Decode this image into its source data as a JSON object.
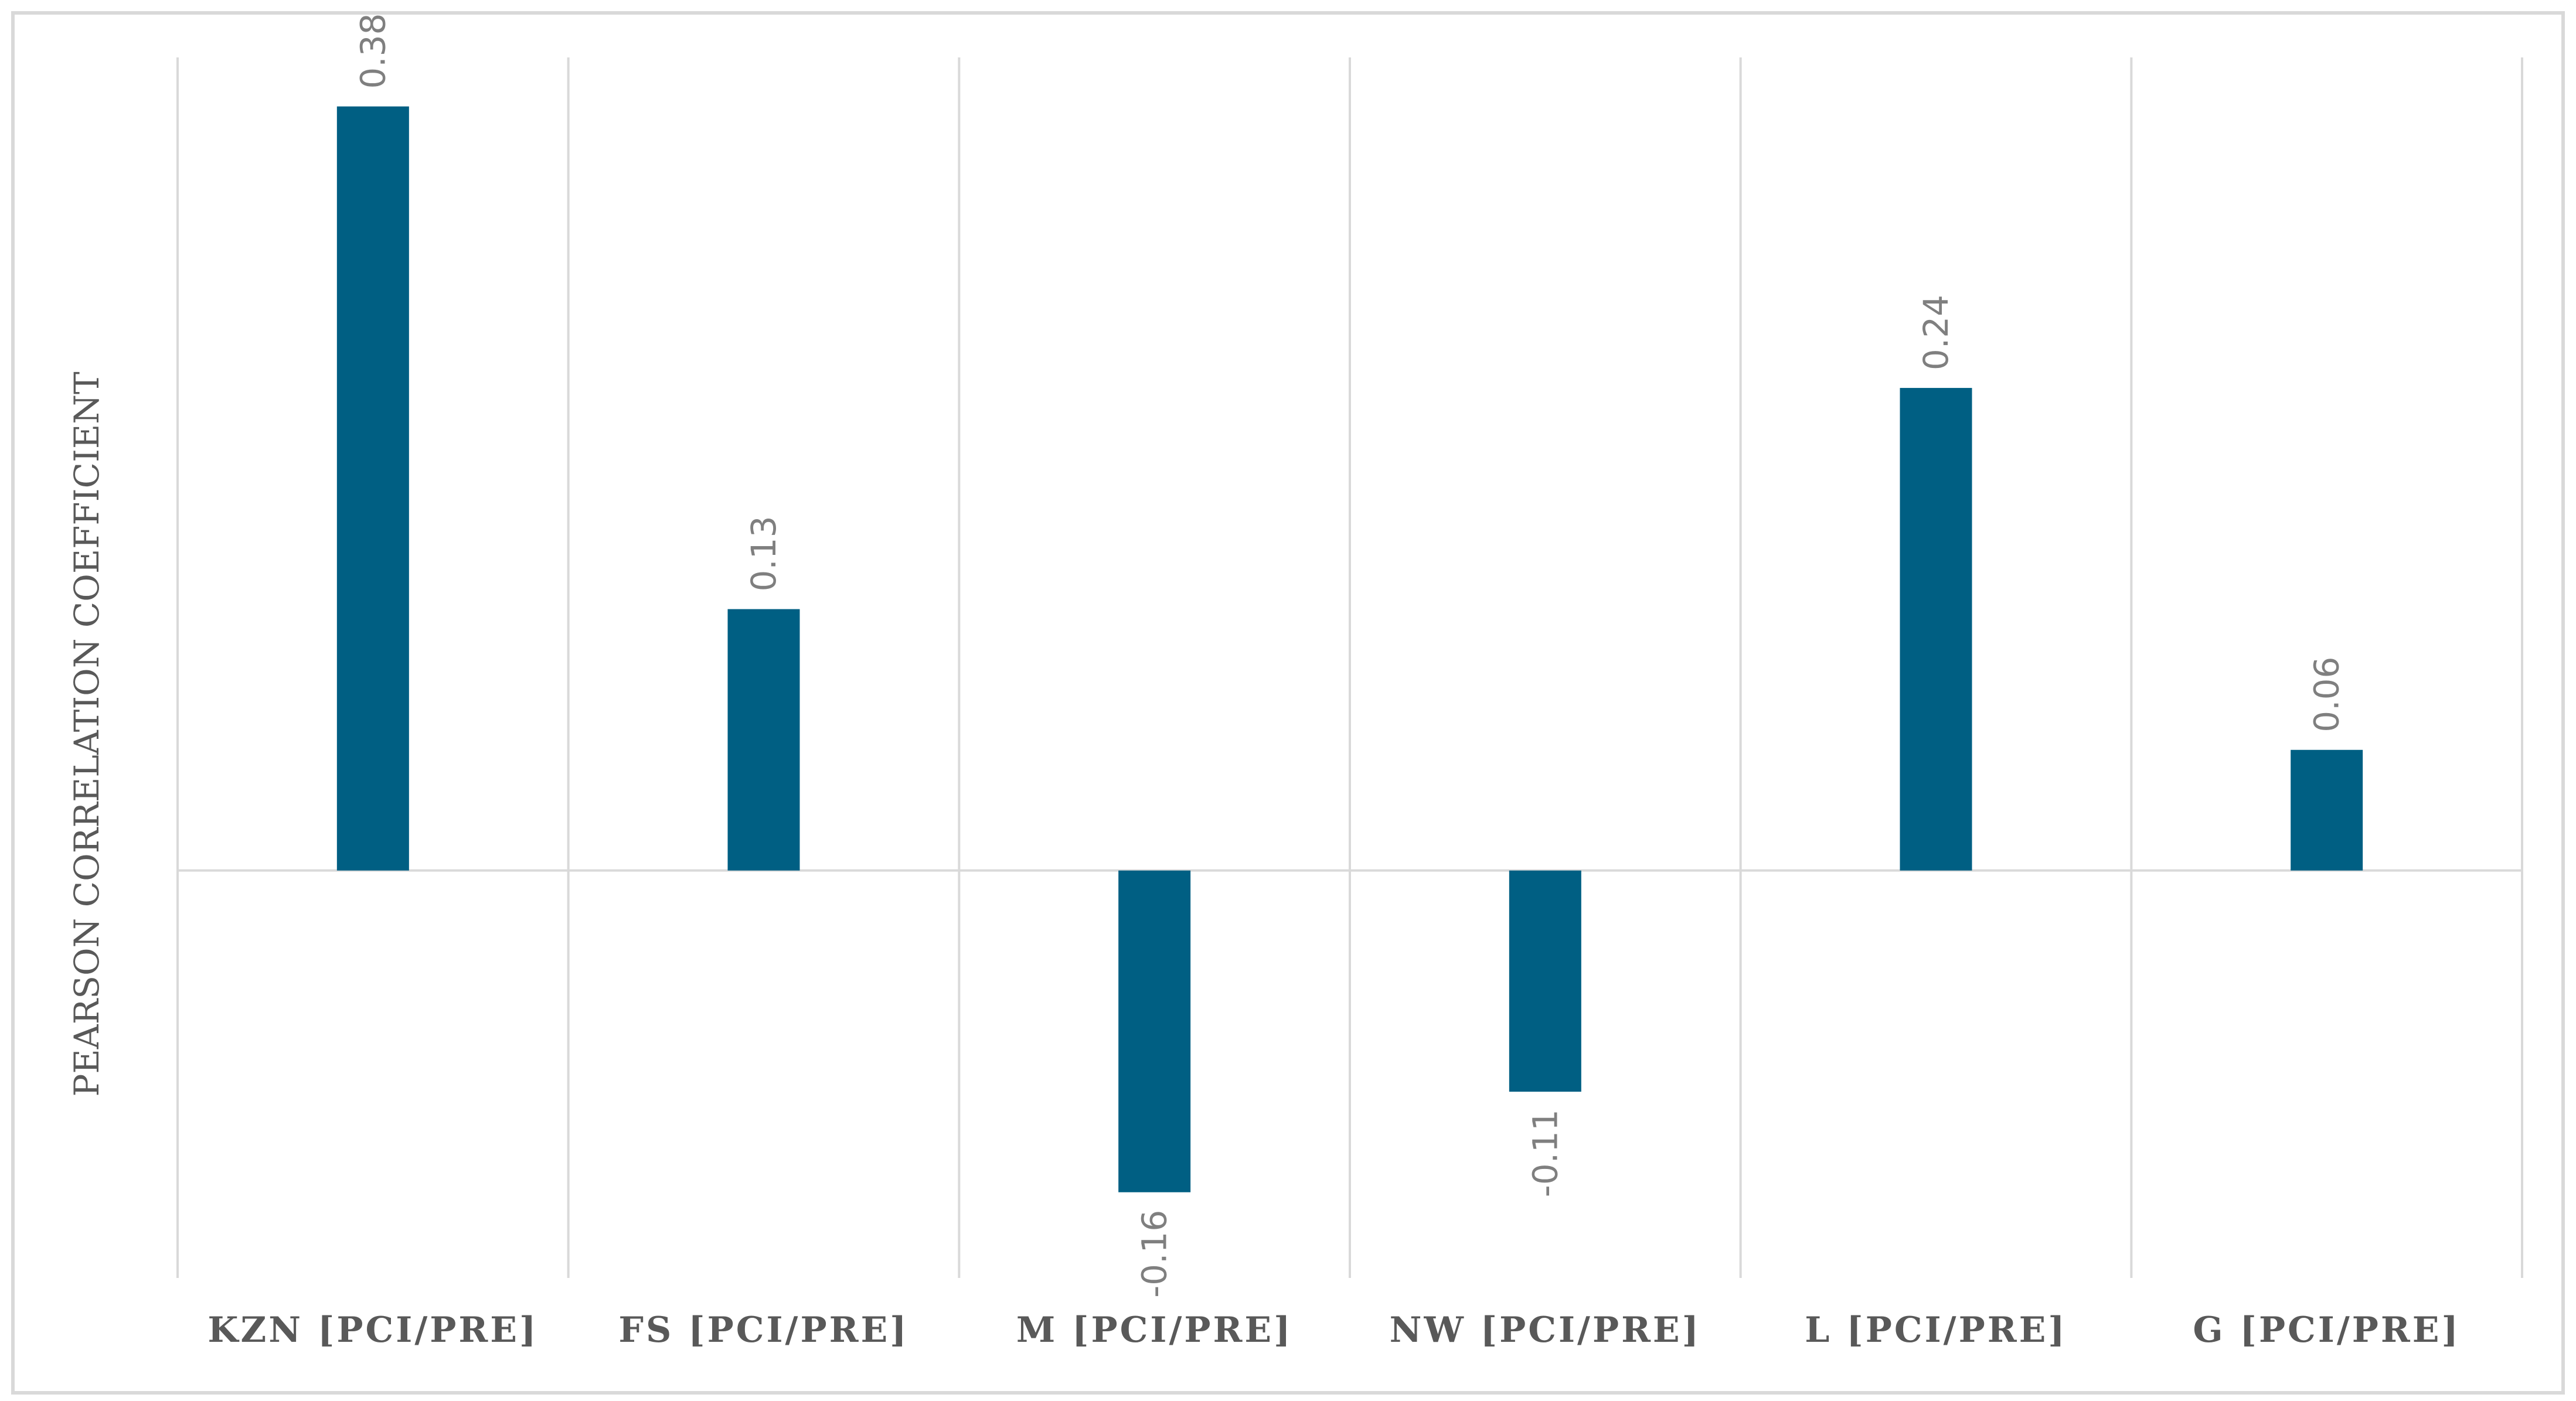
{
  "chart_data": {
    "type": "bar",
    "title": "",
    "xlabel": "",
    "ylabel": "PEARSON CORRELATION COEFFICIENT",
    "categories": [
      "KZN [PCI/PRE]",
      "FS [PCI/PRE]",
      "M [PCI/PRE]",
      "NW [PCI/PRE]",
      "L [PCI/PRE]",
      "G [PCI/PRE]"
    ],
    "values": [
      0.38,
      0.13,
      -0.16,
      -0.11,
      0.24,
      0.06
    ],
    "data_labels": [
      "0.38",
      "0.13",
      "-0.16",
      "-0.11",
      "0.24",
      "0.06"
    ],
    "ylim": [
      -0.2,
      0.4
    ],
    "grid": "vertical category separators",
    "legend": "none",
    "colors": {
      "bar": "#005f83",
      "grid": "#d9d9d9",
      "text": "#595959",
      "data_label": "#7f7f7f"
    }
  }
}
